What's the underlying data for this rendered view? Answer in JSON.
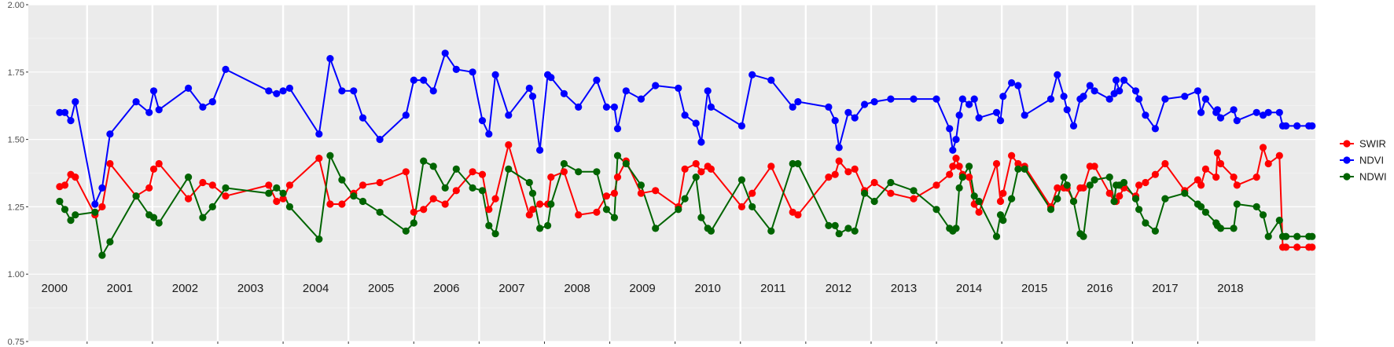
{
  "chart_data": {
    "type": "line",
    "ylim": [
      0.75,
      2.0
    ],
    "y_ticks": [
      "0.75",
      "1.00",
      "1.25",
      "1.50",
      "1.75",
      "2.00"
    ],
    "xlim": [
      1999.6,
      2019.3
    ],
    "grid": true,
    "legend_position": "right",
    "year_labels": [
      "2000",
      "2001",
      "2002",
      "2003",
      "2004",
      "2005",
      "2006",
      "2007",
      "2008",
      "2009",
      "2010",
      "2011",
      "2012",
      "2013",
      "2014",
      "2015",
      "2016",
      "2017",
      "2018"
    ],
    "series": [
      {
        "name": "SWIR",
        "color": "#ff0000",
        "x": [
          2000.08,
          2000.16,
          2000.25,
          2000.32,
          2000.62,
          2000.73,
          2000.85,
          2001.25,
          2001.45,
          2001.52,
          2001.6,
          2002.05,
          2002.27,
          2002.42,
          2002.62,
          2003.28,
          2003.4,
          2003.5,
          2003.6,
          2004.05,
          2004.22,
          2004.4,
          2004.58,
          2004.72,
          2004.98,
          2005.38,
          2005.5,
          2005.65,
          2005.8,
          2005.98,
          2006.15,
          2006.4,
          2006.55,
          2006.65,
          2006.75,
          2006.95,
          2007.27,
          2007.32,
          2007.43,
          2007.55,
          2007.6,
          2007.8,
          2008.02,
          2008.3,
          2008.45,
          2008.57,
          2008.62,
          2008.75,
          2008.98,
          2009.2,
          2009.55,
          2009.65,
          2009.82,
          2009.9,
          2010.0,
          2010.05,
          2010.52,
          2010.68,
          2010.97,
          2011.3,
          2011.38,
          2011.85,
          2011.95,
          2012.01,
          2012.15,
          2012.25,
          2012.4,
          2012.55,
          2012.8,
          2013.15,
          2013.5,
          2013.7,
          2013.75,
          2013.8,
          2013.85,
          2013.9,
          2014.0,
          2014.08,
          2014.15,
          2014.42,
          2014.48,
          2014.52,
          2014.65,
          2014.75,
          2014.85,
          2015.25,
          2015.35,
          2015.45,
          2015.5,
          2015.6,
          2015.7,
          2015.75,
          2015.85,
          2015.92,
          2016.15,
          2016.22,
          2016.25,
          2016.3,
          2016.37,
          2016.55,
          2016.6,
          2016.7,
          2016.85,
          2017.0,
          2017.3,
          2017.5,
          2017.55,
          2017.62,
          2017.78,
          2017.8,
          2017.85,
          2018.05,
          2018.1,
          2018.4,
          2018.5,
          2018.58,
          2018.75,
          2018.8,
          2018.85,
          2019.02,
          2019.2,
          2019.25
        ],
        "y": [
          1.325,
          1.33,
          1.37,
          1.36,
          1.22,
          1.25,
          1.41,
          1.29,
          1.32,
          1.39,
          1.41,
          1.28,
          1.34,
          1.33,
          1.29,
          1.33,
          1.27,
          1.28,
          1.33,
          1.43,
          1.26,
          1.26,
          1.3,
          1.33,
          1.34,
          1.38,
          1.23,
          1.24,
          1.28,
          1.26,
          1.31,
          1.38,
          1.37,
          1.24,
          1.28,
          1.48,
          1.22,
          1.24,
          1.26,
          1.26,
          1.36,
          1.38,
          1.22,
          1.23,
          1.29,
          1.3,
          1.36,
          1.42,
          1.3,
          1.31,
          1.25,
          1.39,
          1.41,
          1.38,
          1.4,
          1.39,
          1.25,
          1.3,
          1.4,
          1.23,
          1.22,
          1.36,
          1.37,
          1.42,
          1.38,
          1.39,
          1.31,
          1.34,
          1.3,
          1.28,
          1.33,
          1.37,
          1.4,
          1.43,
          1.4,
          1.37,
          1.36,
          1.26,
          1.23,
          1.41,
          1.27,
          1.3,
          1.44,
          1.41,
          1.4,
          1.25,
          1.32,
          1.32,
          1.32,
          1.27,
          1.32,
          1.32,
          1.4,
          1.4,
          1.3,
          1.27,
          1.27,
          1.29,
          1.32,
          1.29,
          1.33,
          1.34,
          1.37,
          1.41,
          1.31,
          1.35,
          1.33,
          1.39,
          1.36,
          1.45,
          1.41,
          1.36,
          1.33,
          1.36,
          1.47,
          1.41,
          1.44,
          1.1,
          1.1,
          1.1,
          1.1,
          1.1
        ]
      },
      {
        "name": "NDVI",
        "color": "#0000ff",
        "x": [
          2000.08,
          2000.16,
          2000.25,
          2000.32,
          2000.62,
          2000.73,
          2000.85,
          2001.25,
          2001.45,
          2001.52,
          2001.6,
          2002.05,
          2002.27,
          2002.42,
          2002.62,
          2003.28,
          2003.4,
          2003.5,
          2003.6,
          2004.05,
          2004.22,
          2004.4,
          2004.58,
          2004.72,
          2004.98,
          2005.38,
          2005.5,
          2005.65,
          2005.8,
          2005.98,
          2006.15,
          2006.4,
          2006.55,
          2006.65,
          2006.75,
          2006.95,
          2007.27,
          2007.32,
          2007.43,
          2007.55,
          2007.6,
          2007.8,
          2008.02,
          2008.3,
          2008.45,
          2008.57,
          2008.62,
          2008.75,
          2008.98,
          2009.2,
          2009.55,
          2009.65,
          2009.82,
          2009.9,
          2010.0,
          2010.05,
          2010.52,
          2010.68,
          2010.97,
          2011.3,
          2011.38,
          2011.85,
          2011.95,
          2012.01,
          2012.15,
          2012.25,
          2012.4,
          2012.55,
          2012.8,
          2013.15,
          2013.5,
          2013.7,
          2013.75,
          2013.8,
          2013.85,
          2013.9,
          2014.0,
          2014.08,
          2014.15,
          2014.42,
          2014.48,
          2014.52,
          2014.65,
          2014.75,
          2014.85,
          2015.25,
          2015.35,
          2015.45,
          2015.5,
          2015.6,
          2015.7,
          2015.75,
          2015.85,
          2015.92,
          2016.15,
          2016.22,
          2016.25,
          2016.3,
          2016.37,
          2016.55,
          2016.6,
          2016.7,
          2016.85,
          2017.0,
          2017.3,
          2017.5,
          2017.55,
          2017.62,
          2017.78,
          2017.8,
          2017.85,
          2018.05,
          2018.1,
          2018.4,
          2018.5,
          2018.58,
          2018.75,
          2018.8,
          2018.85,
          2019.02,
          2019.2,
          2019.25
        ],
        "y": [
          1.6,
          1.6,
          1.57,
          1.64,
          1.26,
          1.32,
          1.52,
          1.64,
          1.6,
          1.68,
          1.61,
          1.69,
          1.62,
          1.64,
          1.76,
          1.68,
          1.67,
          1.68,
          1.69,
          1.52,
          1.8,
          1.68,
          1.68,
          1.58,
          1.5,
          1.59,
          1.72,
          1.72,
          1.68,
          1.82,
          1.76,
          1.75,
          1.57,
          1.52,
          1.74,
          1.59,
          1.69,
          1.66,
          1.46,
          1.74,
          1.73,
          1.67,
          1.62,
          1.72,
          1.62,
          1.62,
          1.54,
          1.68,
          1.65,
          1.7,
          1.69,
          1.59,
          1.56,
          1.49,
          1.68,
          1.62,
          1.55,
          1.74,
          1.72,
          1.62,
          1.64,
          1.62,
          1.57,
          1.47,
          1.6,
          1.58,
          1.63,
          1.64,
          1.65,
          1.65,
          1.65,
          1.54,
          1.46,
          1.5,
          1.59,
          1.65,
          1.63,
          1.65,
          1.58,
          1.6,
          1.57,
          1.66,
          1.71,
          1.7,
          1.59,
          1.65,
          1.74,
          1.66,
          1.61,
          1.55,
          1.65,
          1.66,
          1.7,
          1.68,
          1.65,
          1.67,
          1.72,
          1.68,
          1.72,
          1.68,
          1.65,
          1.59,
          1.54,
          1.65,
          1.66,
          1.68,
          1.6,
          1.65,
          1.6,
          1.61,
          1.58,
          1.61,
          1.57,
          1.6,
          1.59,
          1.6,
          1.6,
          1.55,
          1.55,
          1.55,
          1.55,
          1.55
        ]
      },
      {
        "name": "NDWI",
        "color": "#006400",
        "x": [
          2000.08,
          2000.16,
          2000.25,
          2000.32,
          2000.62,
          2000.73,
          2000.85,
          2001.25,
          2001.45,
          2001.52,
          2001.6,
          2002.05,
          2002.27,
          2002.42,
          2002.62,
          2003.28,
          2003.4,
          2003.5,
          2003.6,
          2004.05,
          2004.22,
          2004.4,
          2004.58,
          2004.72,
          2004.98,
          2005.38,
          2005.5,
          2005.65,
          2005.8,
          2005.98,
          2006.15,
          2006.4,
          2006.55,
          2006.65,
          2006.75,
          2006.95,
          2007.27,
          2007.32,
          2007.43,
          2007.55,
          2007.6,
          2007.8,
          2008.02,
          2008.3,
          2008.45,
          2008.57,
          2008.62,
          2008.75,
          2008.98,
          2009.2,
          2009.55,
          2009.65,
          2009.82,
          2009.9,
          2010.0,
          2010.05,
          2010.52,
          2010.68,
          2010.97,
          2011.3,
          2011.38,
          2011.85,
          2011.95,
          2012.01,
          2012.15,
          2012.25,
          2012.4,
          2012.55,
          2012.8,
          2013.15,
          2013.5,
          2013.7,
          2013.75,
          2013.8,
          2013.85,
          2013.9,
          2014.0,
          2014.08,
          2014.15,
          2014.42,
          2014.48,
          2014.52,
          2014.65,
          2014.75,
          2014.85,
          2015.25,
          2015.35,
          2015.45,
          2015.5,
          2015.6,
          2015.7,
          2015.75,
          2015.85,
          2015.92,
          2016.15,
          2016.22,
          2016.25,
          2016.3,
          2016.37,
          2016.55,
          2016.6,
          2016.7,
          2016.85,
          2017.0,
          2017.3,
          2017.5,
          2017.55,
          2017.62,
          2017.78,
          2017.8,
          2017.85,
          2018.05,
          2018.1,
          2018.4,
          2018.5,
          2018.58,
          2018.75,
          2018.8,
          2018.85,
          2019.02,
          2019.2,
          2019.25
        ],
        "y": [
          1.27,
          1.24,
          1.2,
          1.22,
          1.23,
          1.07,
          1.12,
          1.29,
          1.22,
          1.21,
          1.19,
          1.36,
          1.21,
          1.25,
          1.32,
          1.3,
          1.32,
          1.3,
          1.25,
          1.13,
          1.44,
          1.35,
          1.29,
          1.27,
          1.23,
          1.16,
          1.19,
          1.42,
          1.4,
          1.32,
          1.39,
          1.32,
          1.31,
          1.18,
          1.15,
          1.39,
          1.34,
          1.3,
          1.17,
          1.18,
          1.26,
          1.41,
          1.38,
          1.38,
          1.24,
          1.21,
          1.44,
          1.41,
          1.33,
          1.17,
          1.24,
          1.28,
          1.36,
          1.21,
          1.17,
          1.16,
          1.35,
          1.25,
          1.16,
          1.41,
          1.41,
          1.18,
          1.18,
          1.15,
          1.17,
          1.16,
          1.3,
          1.27,
          1.34,
          1.31,
          1.24,
          1.17,
          1.16,
          1.17,
          1.32,
          1.36,
          1.4,
          1.29,
          1.27,
          1.14,
          1.22,
          1.2,
          1.28,
          1.39,
          1.39,
          1.24,
          1.28,
          1.36,
          1.33,
          1.27,
          1.15,
          1.14,
          1.33,
          1.35,
          1.36,
          1.27,
          1.33,
          1.33,
          1.34,
          1.28,
          1.24,
          1.19,
          1.16,
          1.28,
          1.3,
          1.26,
          1.25,
          1.23,
          1.19,
          1.18,
          1.17,
          1.17,
          1.26,
          1.25,
          1.22,
          1.14,
          1.2,
          1.14,
          1.14,
          1.14,
          1.14,
          1.14
        ]
      }
    ]
  }
}
